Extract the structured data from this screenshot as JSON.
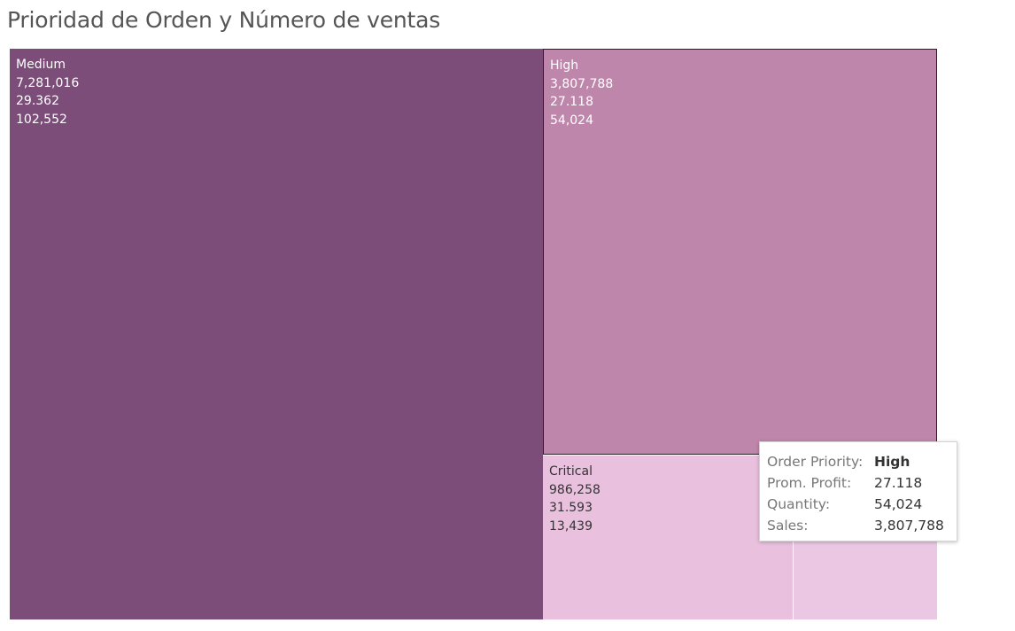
{
  "title": "Prioridad de Orden y Número de ventas",
  "chart_data": {
    "type": "treemap",
    "title": "Prioridad de Orden y Número de ventas",
    "size_measure": "Sales",
    "tiles": [
      {
        "label": "Medium",
        "sales": "7,281,016",
        "profit": "29.362",
        "quantity": "102,552",
        "sales_value": 7281016,
        "color": "#7b4d78",
        "text_color": "#ffffff",
        "selected": false,
        "show_labels": true
      },
      {
        "label": "High",
        "sales": "3,807,788",
        "profit": "27.118",
        "quantity": "54,024",
        "sales_value": 3807788,
        "color": "#be86ab",
        "text_color": "#ffffff",
        "selected": true,
        "show_labels": true
      },
      {
        "label": "Critical",
        "sales": "986,258",
        "profit": "31.593",
        "quantity": "13,439",
        "sales_value": 986258,
        "color": "#e9c1df",
        "text_color": "#333333",
        "selected": false,
        "show_labels": true
      },
      {
        "label": "",
        "sales": "",
        "profit": "",
        "quantity": "",
        "sales_value": 0,
        "color": "#ecc7e3",
        "text_color": "#333333",
        "selected": false,
        "show_labels": false
      }
    ]
  },
  "tooltip": {
    "rows": [
      {
        "key": "Order Priority:",
        "value": "High",
        "bold": true
      },
      {
        "key": "Prom. Profit:",
        "value": "27.118",
        "bold": false
      },
      {
        "key": "Quantity:",
        "value": "54,024",
        "bold": false
      },
      {
        "key": "Sales:",
        "value": "3,807,788",
        "bold": false
      }
    ]
  }
}
